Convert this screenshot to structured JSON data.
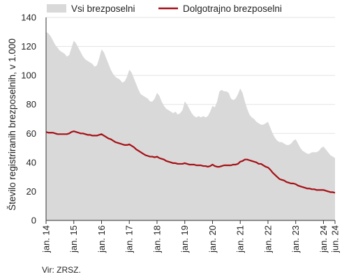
{
  "chart_data": {
    "type": "area",
    "ylabel": "Število registriranih brezposelnih, v 1.000",
    "ylim": [
      0,
      140
    ],
    "yticks": [
      0,
      20,
      40,
      60,
      80,
      100,
      120,
      140
    ],
    "xticks": [
      "jan. 14",
      "jan. 15",
      "jan. 16",
      "jan. 17",
      "jan. 18",
      "jan. 19",
      "jan. 20",
      "jan. 21",
      "jan. 22",
      "jan. 23",
      "jan. 24",
      "jun. 24"
    ],
    "grid": true,
    "legend": "top",
    "series": [
      {
        "name": "Vsi brezposelni",
        "style": "area",
        "color": "#d9d9d9",
        "points": [
          [
            "jan. 14",
            130
          ],
          [
            "feb. 14",
            129
          ],
          [
            "mar. 14",
            127
          ],
          [
            "apr. 14",
            124
          ],
          [
            "maj 14",
            121
          ],
          [
            "jun. 14",
            119
          ],
          [
            "jul. 14",
            117
          ],
          [
            "avg. 14",
            116
          ],
          [
            "sep. 14",
            115
          ],
          [
            "okt. 14",
            113
          ],
          [
            "nov. 14",
            114
          ],
          [
            "dec. 14",
            119
          ],
          [
            "jan. 15",
            124
          ],
          [
            "feb. 15",
            122
          ],
          [
            "mar. 15",
            119
          ],
          [
            "apr. 15",
            116
          ],
          [
            "maj 15",
            113
          ],
          [
            "jun. 15",
            111
          ],
          [
            "jul. 15",
            110
          ],
          [
            "avg. 15",
            109
          ],
          [
            "sep. 15",
            108
          ],
          [
            "okt. 15",
            106
          ],
          [
            "nov. 15",
            107
          ],
          [
            "dec. 15",
            112
          ],
          [
            "jan. 16",
            118
          ],
          [
            "feb. 16",
            116
          ],
          [
            "mar. 16",
            112
          ],
          [
            "apr. 16",
            108
          ],
          [
            "maj 16",
            104
          ],
          [
            "jun. 16",
            101
          ],
          [
            "jul. 16",
            99
          ],
          [
            "avg. 16",
            98
          ],
          [
            "sep. 16",
            97
          ],
          [
            "okt. 16",
            95
          ],
          [
            "nov. 16",
            96
          ],
          [
            "dec. 16",
            99
          ],
          [
            "jan. 17",
            104
          ],
          [
            "feb. 17",
            102
          ],
          [
            "mar. 17",
            98
          ],
          [
            "apr. 17",
            94
          ],
          [
            "maj 17",
            90
          ],
          [
            "jun. 17",
            87
          ],
          [
            "jul. 17",
            86
          ],
          [
            "avg. 17",
            85
          ],
          [
            "sep. 17",
            84
          ],
          [
            "okt. 17",
            82
          ],
          [
            "nov. 17",
            82
          ],
          [
            "dec. 17",
            84
          ],
          [
            "jan. 18",
            88
          ],
          [
            "feb. 18",
            86
          ],
          [
            "mar. 18",
            82
          ],
          [
            "apr. 18",
            79
          ],
          [
            "maj 18",
            77
          ],
          [
            "jun. 18",
            76
          ],
          [
            "jul. 18",
            75
          ],
          [
            "avg. 18",
            74
          ],
          [
            "sep. 18",
            75
          ],
          [
            "okt. 18",
            73
          ],
          [
            "nov. 18",
            74
          ],
          [
            "dec. 18",
            76
          ],
          [
            "jan. 19",
            82
          ],
          [
            "feb. 19",
            80
          ],
          [
            "mar. 19",
            77
          ],
          [
            "apr. 19",
            74
          ],
          [
            "maj 19",
            72
          ],
          [
            "jun. 19",
            71
          ],
          [
            "jul. 19",
            72
          ],
          [
            "avg. 19",
            71
          ],
          [
            "sep. 19",
            72
          ],
          [
            "okt. 19",
            71
          ],
          [
            "nov. 19",
            72
          ],
          [
            "dec. 19",
            75
          ],
          [
            "jan. 20",
            79
          ],
          [
            "feb. 20",
            78
          ],
          [
            "mar. 20",
            82
          ],
          [
            "apr. 20",
            89
          ],
          [
            "maj 20",
            90
          ],
          [
            "jun. 20",
            89
          ],
          [
            "jul. 20",
            89
          ],
          [
            "avg. 20",
            88
          ],
          [
            "sep. 20",
            84
          ],
          [
            "okt. 20",
            83
          ],
          [
            "nov. 20",
            84
          ],
          [
            "dec. 20",
            87
          ],
          [
            "jan. 21",
            91
          ],
          [
            "feb. 21",
            88
          ],
          [
            "mar. 21",
            82
          ],
          [
            "apr. 21",
            77
          ],
          [
            "maj 21",
            73
          ],
          [
            "jun. 21",
            71
          ],
          [
            "jul. 21",
            70
          ],
          [
            "avg. 21",
            68
          ],
          [
            "sep. 21",
            67
          ],
          [
            "okt. 21",
            66
          ],
          [
            "nov. 21",
            66
          ],
          [
            "dec. 21",
            67
          ],
          [
            "jan. 22",
            68
          ],
          [
            "feb. 22",
            64
          ],
          [
            "mar. 22",
            60
          ],
          [
            "apr. 22",
            57
          ],
          [
            "maj 22",
            55
          ],
          [
            "jun. 22",
            54
          ],
          [
            "jul. 22",
            54
          ],
          [
            "avg. 22",
            53
          ],
          [
            "sep. 22",
            52
          ],
          [
            "okt. 22",
            52
          ],
          [
            "nov. 22",
            53
          ],
          [
            "dec. 22",
            55
          ],
          [
            "jan. 23",
            56
          ],
          [
            "feb. 23",
            53
          ],
          [
            "mar. 23",
            50
          ],
          [
            "apr. 23",
            48
          ],
          [
            "maj 23",
            47
          ],
          [
            "jun. 23",
            46
          ],
          [
            "jul. 23",
            46
          ],
          [
            "avg. 23",
            47
          ],
          [
            "sep. 23",
            47
          ],
          [
            "okt. 23",
            47
          ],
          [
            "nov. 23",
            48
          ],
          [
            "dec. 23",
            50
          ],
          [
            "jan. 24",
            51
          ],
          [
            "feb. 24",
            49
          ],
          [
            "mar. 24",
            47
          ],
          [
            "apr. 24",
            45
          ],
          [
            "maj 24",
            44
          ],
          [
            "jun. 24",
            43
          ]
        ]
      },
      {
        "name": "Dolgotrajno brezposelni",
        "style": "line",
        "color": "#a50f15",
        "points": [
          [
            "jan. 14",
            61
          ],
          [
            "feb. 14",
            60.5
          ],
          [
            "mar. 14",
            60.5
          ],
          [
            "apr. 14",
            60.5
          ],
          [
            "maj 14",
            60
          ],
          [
            "jun. 14",
            59.5
          ],
          [
            "jul. 14",
            59.5
          ],
          [
            "avg. 14",
            59.5
          ],
          [
            "sep. 14",
            59.5
          ],
          [
            "okt. 14",
            59.5
          ],
          [
            "nov. 14",
            60
          ],
          [
            "dec. 14",
            61
          ],
          [
            "jan. 15",
            61.5
          ],
          [
            "feb. 15",
            61
          ],
          [
            "mar. 15",
            60.5
          ],
          [
            "apr. 15",
            60
          ],
          [
            "maj 15",
            60
          ],
          [
            "jun. 15",
            59.5
          ],
          [
            "jul. 15",
            59
          ],
          [
            "avg. 15",
            59
          ],
          [
            "sep. 15",
            58.5
          ],
          [
            "okt. 15",
            58.5
          ],
          [
            "nov. 15",
            58.5
          ],
          [
            "dec. 15",
            59
          ],
          [
            "jan. 16",
            59.5
          ],
          [
            "feb. 16",
            58.5
          ],
          [
            "mar. 16",
            57.5
          ],
          [
            "apr. 16",
            56.5
          ],
          [
            "maj 16",
            56
          ],
          [
            "jun. 16",
            55
          ],
          [
            "jul. 16",
            54
          ],
          [
            "avg. 16",
            53.5
          ],
          [
            "sep. 16",
            53
          ],
          [
            "okt. 16",
            52.5
          ],
          [
            "nov. 16",
            52
          ],
          [
            "dec. 16",
            52
          ],
          [
            "jan. 17",
            52.5
          ],
          [
            "feb. 17",
            51.5
          ],
          [
            "mar. 17",
            50.5
          ],
          [
            "apr. 17",
            49
          ],
          [
            "maj 17",
            48
          ],
          [
            "jun. 17",
            47
          ],
          [
            "jul. 17",
            46
          ],
          [
            "avg. 17",
            45
          ],
          [
            "sep. 17",
            44.5
          ],
          [
            "okt. 17",
            44
          ],
          [
            "nov. 17",
            44
          ],
          [
            "dec. 17",
            43.5
          ],
          [
            "jan. 18",
            44
          ],
          [
            "feb. 18",
            43
          ],
          [
            "mar. 18",
            42.5
          ],
          [
            "apr. 18",
            42
          ],
          [
            "maj 18",
            41
          ],
          [
            "jun. 18",
            40.5
          ],
          [
            "jul. 18",
            40
          ],
          [
            "avg. 18",
            39.5
          ],
          [
            "sep. 18",
            39.5
          ],
          [
            "okt. 18",
            39
          ],
          [
            "nov. 18",
            39
          ],
          [
            "dec. 18",
            39
          ],
          [
            "jan. 19",
            39.5
          ],
          [
            "feb. 19",
            39
          ],
          [
            "mar. 19",
            38.5
          ],
          [
            "apr. 19",
            38.5
          ],
          [
            "maj 19",
            38.5
          ],
          [
            "jun. 19",
            38
          ],
          [
            "jul. 19",
            38
          ],
          [
            "avg. 19",
            38
          ],
          [
            "sep. 19",
            37.5
          ],
          [
            "okt. 19",
            37.5
          ],
          [
            "nov. 19",
            37
          ],
          [
            "dec. 19",
            37.5
          ],
          [
            "jan. 20",
            38.5
          ],
          [
            "feb. 20",
            37.5
          ],
          [
            "mar. 20",
            37
          ],
          [
            "apr. 20",
            37
          ],
          [
            "maj 20",
            37.5
          ],
          [
            "jun. 20",
            38
          ],
          [
            "jul. 20",
            38
          ],
          [
            "avg. 20",
            38
          ],
          [
            "sep. 20",
            38
          ],
          [
            "okt. 20",
            38.5
          ],
          [
            "nov. 20",
            38.5
          ],
          [
            "dec. 20",
            39
          ],
          [
            "jan. 21",
            40.5
          ],
          [
            "feb. 21",
            41
          ],
          [
            "mar. 21",
            42
          ],
          [
            "apr. 21",
            42
          ],
          [
            "maj 21",
            41.5
          ],
          [
            "jun. 21",
            41
          ],
          [
            "jul. 21",
            40.5
          ],
          [
            "avg. 21",
            40
          ],
          [
            "sep. 21",
            39
          ],
          [
            "okt. 21",
            39
          ],
          [
            "nov. 21",
            38
          ],
          [
            "dec. 21",
            37
          ],
          [
            "jan. 22",
            36.5
          ],
          [
            "feb. 22",
            35
          ],
          [
            "mar. 22",
            33
          ],
          [
            "apr. 22",
            31.5
          ],
          [
            "maj 22",
            30
          ],
          [
            "jun. 22",
            28.5
          ],
          [
            "jul. 22",
            28
          ],
          [
            "avg. 22",
            27.5
          ],
          [
            "sep. 22",
            26.5
          ],
          [
            "okt. 22",
            26
          ],
          [
            "nov. 22",
            25.5
          ],
          [
            "dec. 22",
            25.5
          ],
          [
            "jan. 23",
            25
          ],
          [
            "feb. 23",
            24
          ],
          [
            "mar. 23",
            23.5
          ],
          [
            "apr. 23",
            23
          ],
          [
            "maj 23",
            22.5
          ],
          [
            "jun. 23",
            22
          ],
          [
            "jul. 23",
            22
          ],
          [
            "avg. 23",
            21.5
          ],
          [
            "sep. 23",
            21.5
          ],
          [
            "okt. 23",
            21
          ],
          [
            "nov. 23",
            21
          ],
          [
            "dec. 23",
            21
          ],
          [
            "jan. 24",
            21
          ],
          [
            "feb. 24",
            20.5
          ],
          [
            "mar. 24",
            20
          ],
          [
            "apr. 24",
            19.5
          ],
          [
            "maj 24",
            19.5
          ],
          [
            "jun. 24",
            19
          ]
        ]
      }
    ]
  },
  "source": "Vir: ZRSZ."
}
